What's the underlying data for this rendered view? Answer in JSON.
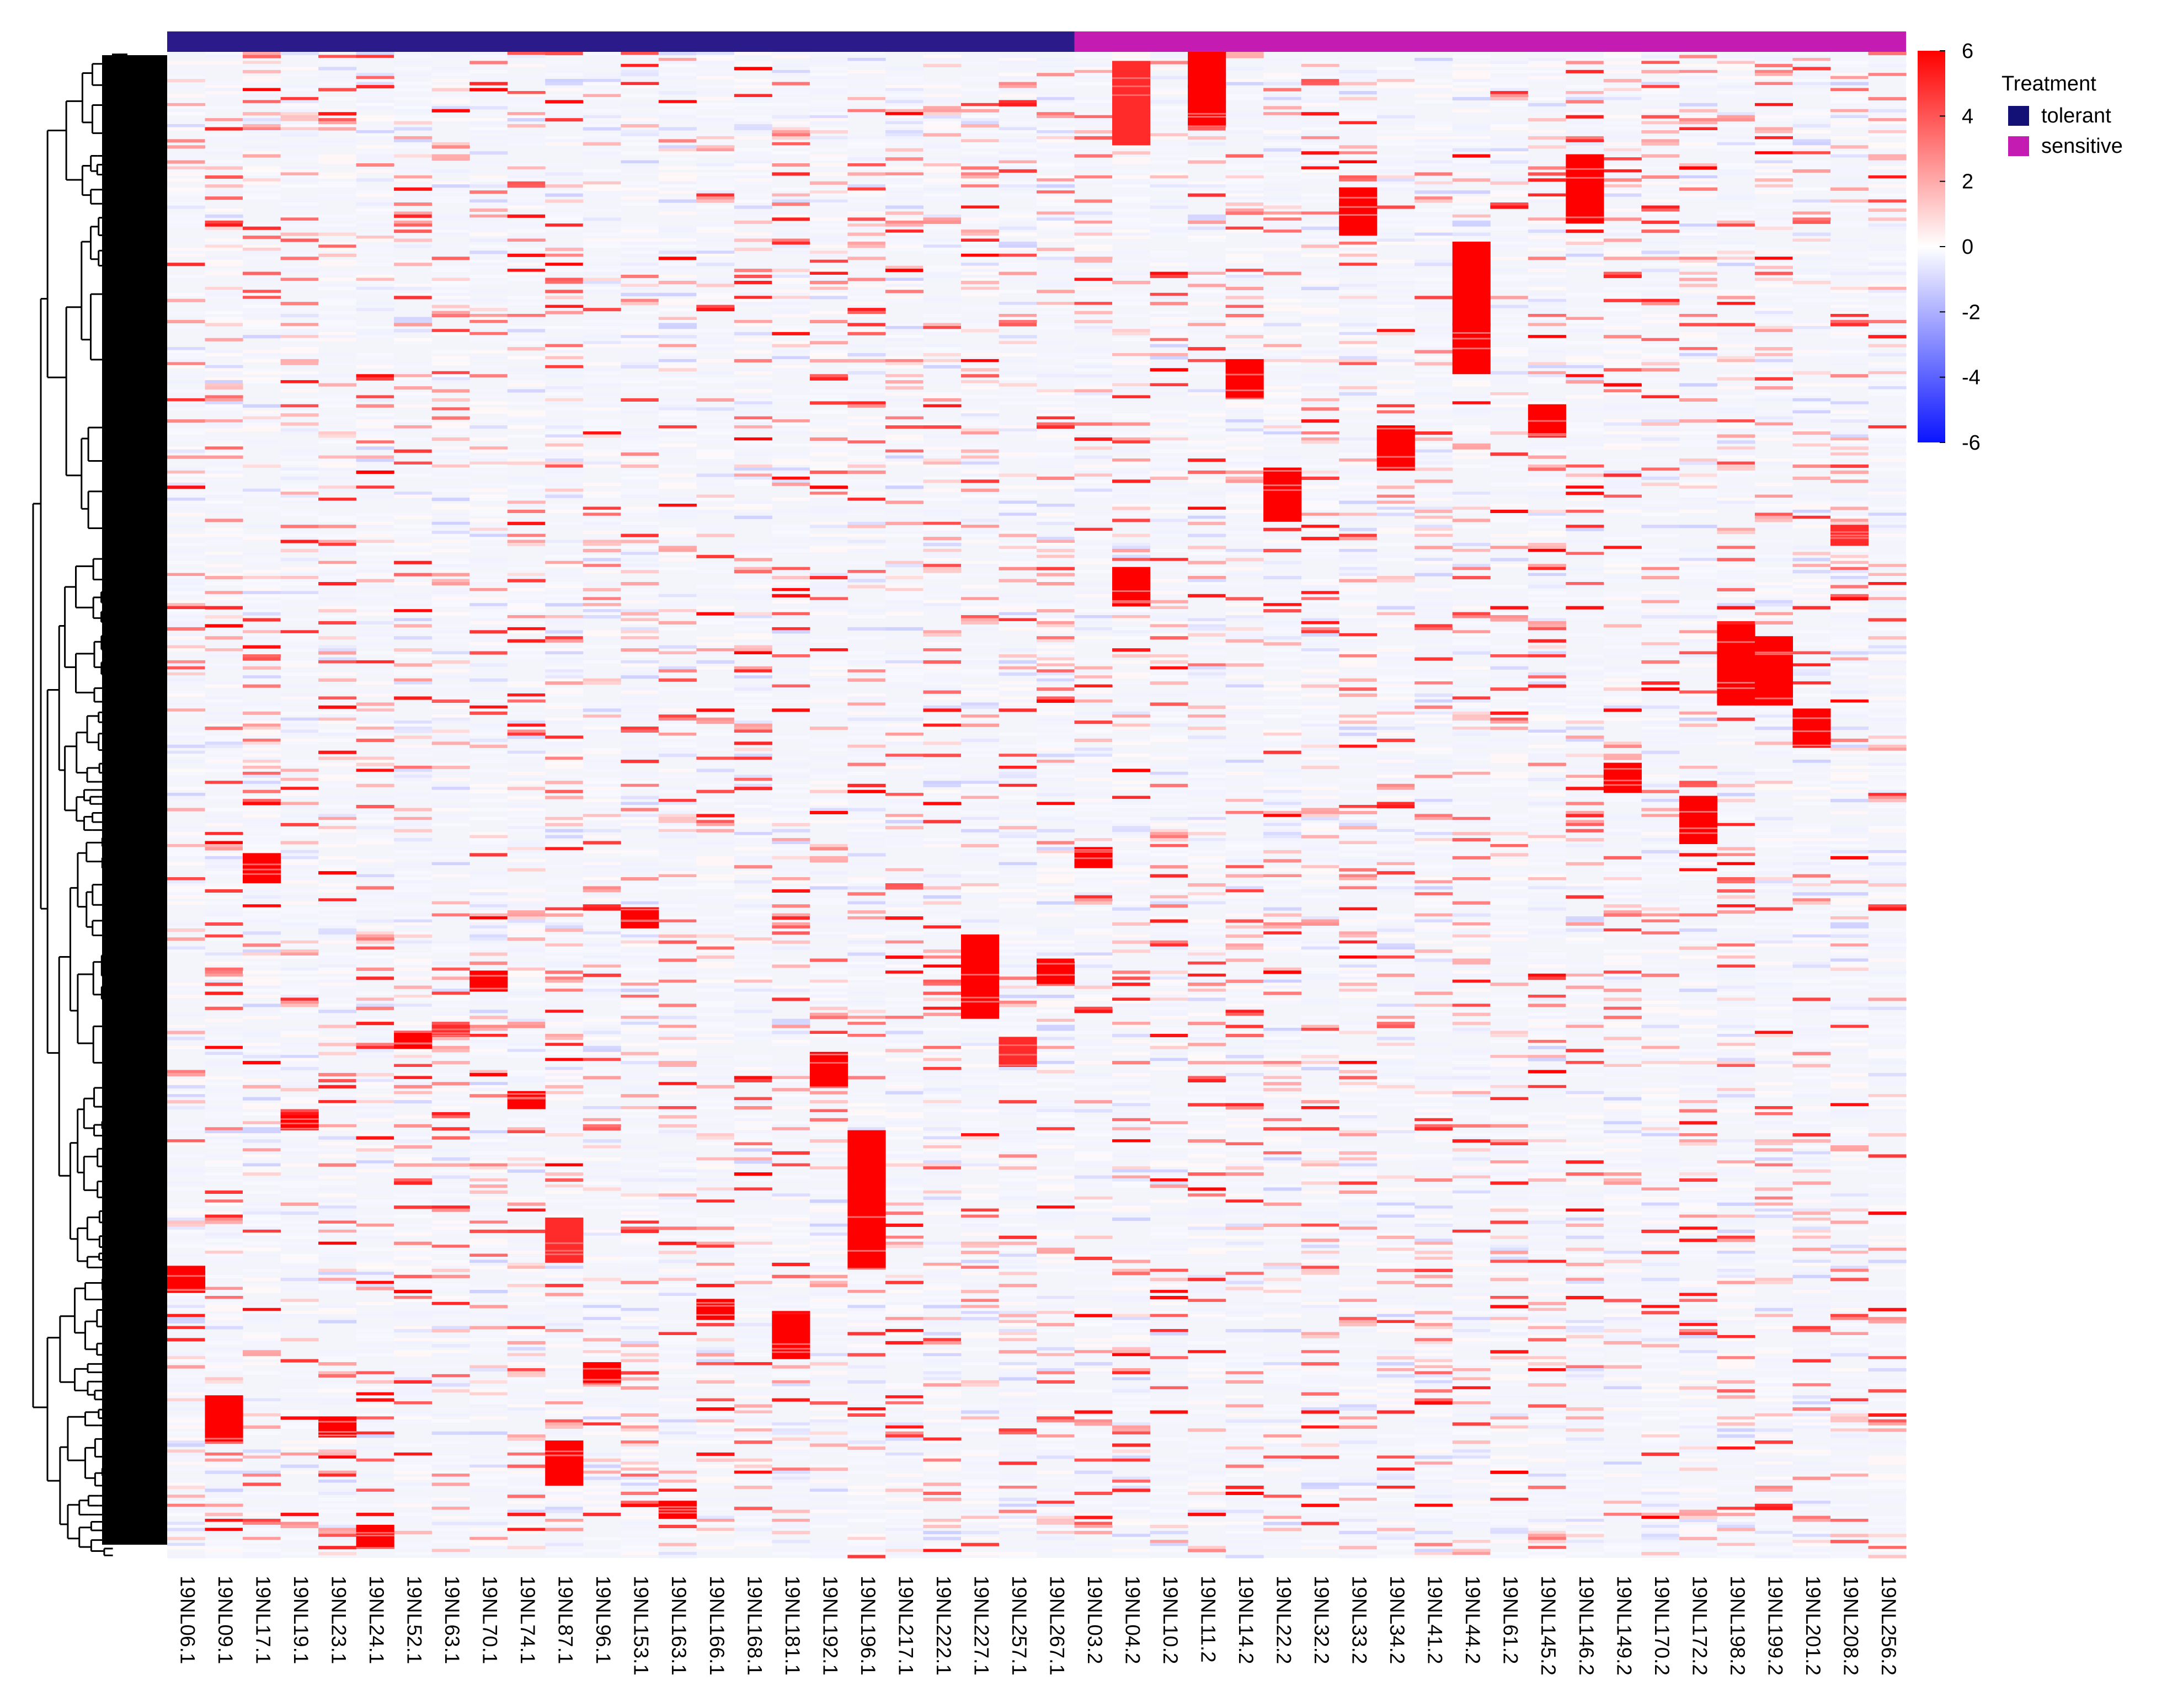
{
  "chart_data": {
    "type": "heatmap",
    "title": "",
    "xlabel": "",
    "ylabel": "",
    "row_dendrogram": true,
    "approx_rows": 440,
    "columns": [
      "19NL06.1",
      "19NL09.1",
      "19NL17.1",
      "19NL19.1",
      "19NL23.1",
      "19NL24.1",
      "19NL52.1",
      "19NL63.1",
      "19NL70.1",
      "19NL74.1",
      "19NL87.1",
      "19NL96.1",
      "19NL153.1",
      "19NL163.1",
      "19NL166.1",
      "19NL168.1",
      "19NL181.1",
      "19NL192.1",
      "19NL196.1",
      "19NL217.1",
      "19NL222.1",
      "19NL227.1",
      "19NL257.1",
      "19NL267.1",
      "19NL03.2",
      "19NL04.2",
      "19NL10.2",
      "19NL11.2",
      "19NL14.2",
      "19NL22.2",
      "19NL32.2",
      "19NL33.2",
      "19NL34.2",
      "19NL41.2",
      "19NL44.2",
      "19NL61.2",
      "19NL145.2",
      "19NL146.2",
      "19NL149.2",
      "19NL170.2",
      "19NL172.2",
      "19NL198.2",
      "19NL199.2",
      "19NL201.2",
      "19NL208.2",
      "19NL256.2"
    ],
    "column_groups": [
      {
        "name": "tolerant",
        "start": 0,
        "count": 24,
        "color": "#2b1a8a"
      },
      {
        "name": "sensitive",
        "start": 24,
        "count": 22,
        "color": "#c41cb3"
      }
    ],
    "legend": {
      "title": "Treatment",
      "entries": [
        {
          "label": "tolerant",
          "color": "#131076"
        },
        {
          "label": "sensitive",
          "color": "#c41cb3"
        }
      ],
      "placement": "top-right"
    },
    "colorbar": {
      "min": -6,
      "max": 6,
      "ticks": [
        "6",
        "4",
        "2",
        "0",
        "-2",
        "-4",
        "-6"
      ],
      "low_color": "#0a14ff",
      "mid_color": "#ffffff",
      "high_color": "#ff0000",
      "placement": "right"
    },
    "value_range": [
      -6,
      6
    ],
    "high_value_blocks": [
      {
        "column": "19NL06.1",
        "rows": [
          403,
          411
        ],
        "value": 6
      },
      {
        "column": "19NL09.1",
        "rows": [
          446,
          461
        ],
        "value": 6
      },
      {
        "column": "19NL17.1",
        "rows": [
          266,
          275
        ],
        "value": 6
      },
      {
        "column": "19NL19.1",
        "rows": [
          353,
          357
        ],
        "value": 6
      },
      {
        "column": "19NL23.1",
        "rows": [
          453,
          459
        ],
        "value": 6
      },
      {
        "column": "19NL24.1",
        "rows": [
          489,
          496
        ],
        "value": 6
      },
      {
        "column": "19NL52.1",
        "rows": [
          325,
          330
        ],
        "value": 6
      },
      {
        "column": "19NL63.1",
        "rows": [
          323,
          326
        ],
        "value": 5
      },
      {
        "column": "19NL70.1",
        "rows": [
          305,
          311
        ],
        "value": 6
      },
      {
        "column": "19NL74.1",
        "rows": [
          345,
          350
        ],
        "value": 6
      },
      {
        "column": "19NL87.1",
        "rows": [
          461,
          475
        ],
        "value": 6
      },
      {
        "column": "19NL87.1",
        "rows": [
          387,
          401
        ],
        "value": 5
      },
      {
        "column": "19NL96.1",
        "rows": [
          435,
          441
        ],
        "value": 6
      },
      {
        "column": "19NL153.1",
        "rows": [
          284,
          290
        ],
        "value": 6
      },
      {
        "column": "19NL163.1",
        "rows": [
          481,
          486
        ],
        "value": 6
      },
      {
        "column": "19NL166.1",
        "rows": [
          414,
          420
        ],
        "value": 6
      },
      {
        "column": "19NL181.1",
        "rows": [
          419,
          433
        ],
        "value": 6
      },
      {
        "column": "19NL192.1",
        "rows": [
          332,
          343
        ],
        "value": 6
      },
      {
        "column": "19NL196.1",
        "rows": [
          358,
          403
        ],
        "value": 6
      },
      {
        "column": "19NL227.1",
        "rows": [
          293,
          320
        ],
        "value": 6
      },
      {
        "column": "19NL257.1",
        "rows": [
          327,
          336
        ],
        "value": 5
      },
      {
        "column": "19NL267.1",
        "rows": [
          302,
          309
        ],
        "value": 6
      },
      {
        "column": "19NL04.2",
        "rows": [
          171,
          183
        ],
        "value": 6
      },
      {
        "column": "19NL04.2",
        "rows": [
          3,
          30
        ],
        "value": 5
      },
      {
        "column": "19NL11.2",
        "rows": [
          0,
          24
        ],
        "value": 6
      },
      {
        "column": "19NL14.2",
        "rows": [
          102,
          114
        ],
        "value": 6
      },
      {
        "column": "19NL22.2",
        "rows": [
          138,
          155
        ],
        "value": 6
      },
      {
        "column": "19NL33.2",
        "rows": [
          45,
          60
        ],
        "value": 6
      },
      {
        "column": "19NL34.2",
        "rows": [
          124,
          138
        ],
        "value": 6
      },
      {
        "column": "19NL44.2",
        "rows": [
          63,
          106
        ],
        "value": 6
      },
      {
        "column": "19NL145.2",
        "rows": [
          117,
          127
        ],
        "value": 6
      },
      {
        "column": "19NL146.2",
        "rows": [
          34,
          56
        ],
        "value": 6
      },
      {
        "column": "19NL149.2",
        "rows": [
          236,
          245
        ],
        "value": 6
      },
      {
        "column": "19NL172.2",
        "rows": [
          247,
          262
        ],
        "value": 6
      },
      {
        "column": "19NL198.2",
        "rows": [
          190,
          216
        ],
        "value": 6
      },
      {
        "column": "19NL199.2",
        "rows": [
          194,
          216
        ],
        "value": 6
      },
      {
        "column": "19NL201.2",
        "rows": [
          218,
          230
        ],
        "value": 6
      },
      {
        "column": "19NL208.2",
        "rows": [
          157,
          163
        ],
        "value": 5
      },
      {
        "column": "19NL03.2",
        "rows": [
          264,
          270
        ],
        "value": 6
      }
    ]
  }
}
